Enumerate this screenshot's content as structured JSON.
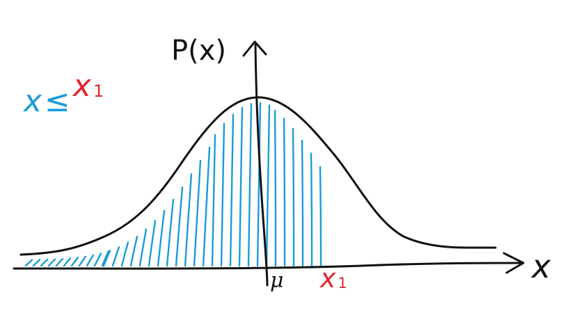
{
  "colors": {
    "ink": "#111111",
    "shading": "#1a9bd7",
    "threshold": "#e0262e"
  },
  "labels": {
    "y_axis": "P(x)",
    "x_axis": "x",
    "mean": "μ",
    "threshold": "x",
    "threshold_subscript": "1",
    "condition_var": "x",
    "condition_op": "≤",
    "condition_threshold": "x",
    "condition_subscript": "1"
  }
}
